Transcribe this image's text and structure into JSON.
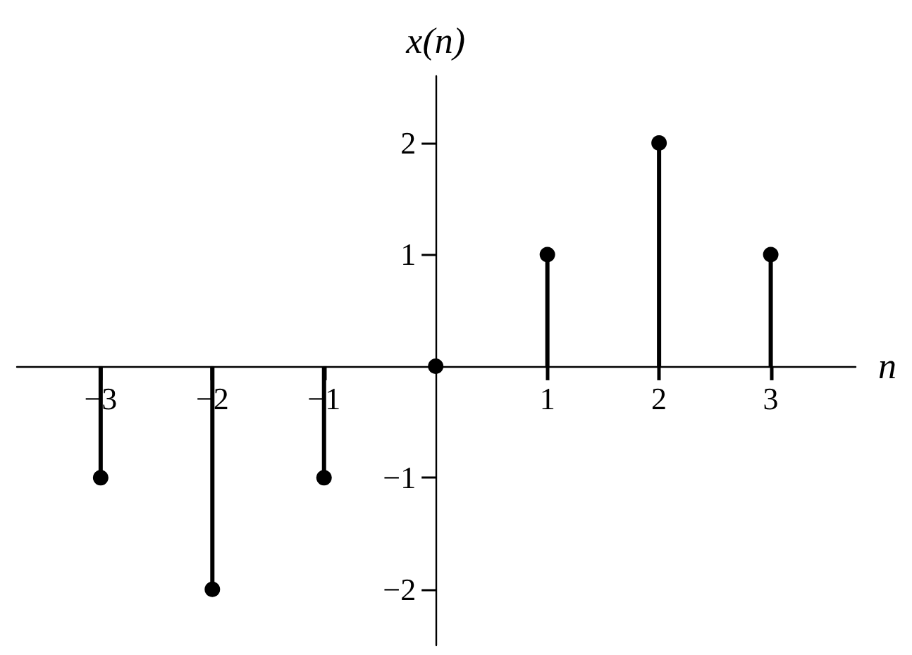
{
  "chart_data": {
    "type": "lollipop",
    "xlabel": "n",
    "ylabel": "x(n)",
    "x": [
      -3,
      -2,
      -1,
      0,
      1,
      2,
      3
    ],
    "values": [
      -1,
      -2,
      -1,
      0,
      1,
      2,
      1
    ],
    "color": "#000000",
    "marker": "circle",
    "xlim": [
      -3.75,
      3.76
    ],
    "ylim": [
      -2.5,
      2.6
    ],
    "xticks": [
      {
        "value": -3,
        "label": "−3"
      },
      {
        "value": -2,
        "label": "−2"
      },
      {
        "value": -1,
        "label": "−1"
      },
      1,
      2,
      3
    ],
    "yticks": [
      {
        "value": -2,
        "label": "−2"
      },
      {
        "value": -1,
        "label": "−1"
      },
      1,
      2
    ]
  }
}
